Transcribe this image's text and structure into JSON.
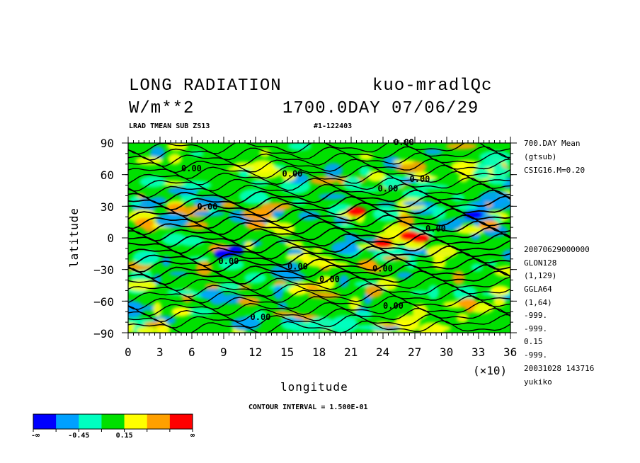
{
  "header": {
    "title_left": "LONG RADIATION",
    "title_right": "kuo-mradlQc",
    "units": "W/m**2",
    "day": "1700.0DAY 07/06/29",
    "var_code": "LRAD TMEAN SUB ZS13",
    "run_id": "#1-122403"
  },
  "right_info_top": [
    "700.DAY Mean",
    "(gtsub)",
    "CSIG16.M=0.20"
  ],
  "right_info_bottom": [
    "20070629000000",
    "GLON128",
    "(1,129)",
    "GGLA64",
    "(1,64)",
    "-999.",
    "-999.",
    "0.15",
    "-999.",
    "20031028 143716",
    "yukiko"
  ],
  "contour_interval": "CONTOUR INTERVAL = 1.500E-01",
  "x_multiplier": "(×10)",
  "chart_data": {
    "type": "heatmap",
    "xlabel": "longitude",
    "ylabel": "latitude",
    "xlim": [
      0,
      36
    ],
    "ylim": [
      -90,
      90
    ],
    "x_ticks": [
      "0",
      "3",
      "6",
      "9",
      "12",
      "15",
      "18",
      "21",
      "24",
      "27",
      "30",
      "33",
      "36"
    ],
    "y_ticks": [
      "90",
      "60",
      "30",
      "0",
      "−30",
      "−60",
      "−90"
    ],
    "contour_labels": [
      {
        "text": "0.00",
        "x": 5,
        "y": 63
      },
      {
        "text": "0.00",
        "x": 6.5,
        "y": 27
      },
      {
        "text": "0.00",
        "x": 25,
        "y": 88
      },
      {
        "text": "0.00",
        "x": 14.5,
        "y": 58
      },
      {
        "text": "0.00",
        "x": 26.5,
        "y": 53
      },
      {
        "text": "0.00",
        "x": 23.5,
        "y": 44
      },
      {
        "text": "0.00",
        "x": 8.5,
        "y": -25
      },
      {
        "text": "0.00",
        "x": 15,
        "y": -30
      },
      {
        "text": "0.00",
        "x": 18,
        "y": -42
      },
      {
        "text": "0.00",
        "x": 23,
        "y": -32
      },
      {
        "text": "0.00",
        "x": 24,
        "y": -67
      },
      {
        "text": "0.00",
        "x": 11.5,
        "y": -78
      },
      {
        "text": "0.00",
        "x": 28,
        "y": 6
      }
    ],
    "colorbar": {
      "colors": [
        "#0000ff",
        "#00a0ff",
        "#00ffc0",
        "#00e000",
        "#ffff00",
        "#ffa000",
        "#ff0000"
      ],
      "labels": [
        "-∞",
        "-0.45",
        "0.15",
        "∞"
      ]
    }
  }
}
